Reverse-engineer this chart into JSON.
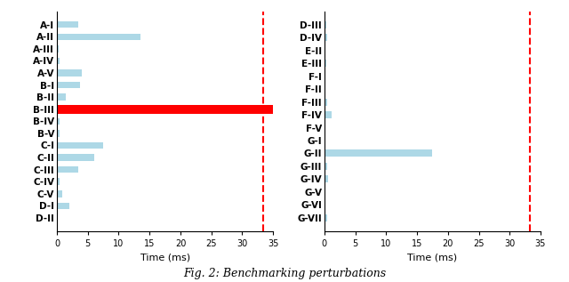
{
  "left_categories": [
    "A-I",
    "A-II",
    "A-III",
    "A-IV",
    "A-V",
    "B-I",
    "B-II",
    "B-III",
    "B-IV",
    "B-V",
    "C-I",
    "C-II",
    "C-III",
    "C-IV",
    "C-V",
    "D-I",
    "D-II"
  ],
  "left_values": [
    3.5,
    13.5,
    0.3,
    0.5,
    4.0,
    3.8,
    1.5,
    35.0,
    0.5,
    0.5,
    7.5,
    6.0,
    3.5,
    0.4,
    0.8,
    2.0,
    0.2
  ],
  "left_red_bar": "B-III",
  "right_categories": [
    "D-III",
    "D-IV",
    "E-II",
    "E-III",
    "F-I",
    "F-II",
    "F-III",
    "F-IV",
    "F-V",
    "G-I",
    "G-II",
    "G-III",
    "G-IV",
    "G-V",
    "G-VI",
    "G-VII"
  ],
  "right_values": [
    0.3,
    0.4,
    0.2,
    0.3,
    0.2,
    0.2,
    0.5,
    1.2,
    0.2,
    0.2,
    17.5,
    0.4,
    0.6,
    0.2,
    0.2,
    0.5
  ],
  "bar_color": "#add8e6",
  "red_bar_color": "#ff0000",
  "vline_color": "#ff0000",
  "vline_x": 33.33,
  "xlim": [
    0,
    35
  ],
  "xticks": [
    0,
    5,
    10,
    15,
    20,
    25,
    30,
    35
  ],
  "xlabel": "Time (ms)",
  "fig_caption": "Fig. 2: Benchmarking perturbations",
  "label_fontsize": 7.5,
  "tick_fontsize": 7.0,
  "xlabel_fontsize": 8,
  "caption_fontsize": 9
}
